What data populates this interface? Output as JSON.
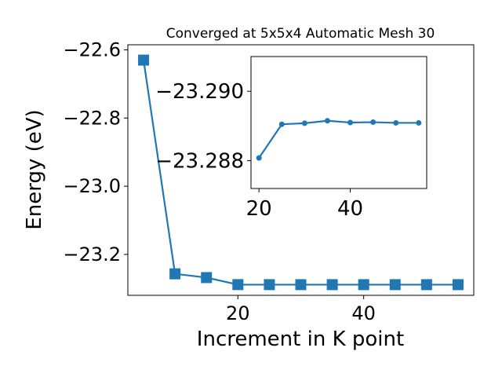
{
  "chart_data": [
    {
      "type": "line",
      "title": "Converged at 5x5x4 Automatic Mesh 30",
      "xlabel": "Increment in K point",
      "ylabel": "Energy (eV)",
      "xlim": [
        2.5,
        57.5
      ],
      "ylim": [
        -23.32,
        -22.585
      ],
      "x_ticks": [
        20,
        40
      ],
      "x_tick_labels": [
        "20",
        "40"
      ],
      "y_ticks": [
        -22.6,
        -22.8,
        -23.0,
        -23.2
      ],
      "y_tick_labels": [
        "−22.6",
        "−22.8",
        "−23.0",
        "−23.2"
      ],
      "grid": false,
      "marker": "square",
      "color": "#1f77b4",
      "series": [
        {
          "x": [
            5,
            10,
            15,
            20,
            25,
            30,
            35,
            40,
            45,
            50,
            55
          ],
          "values": [
            -22.63,
            -23.257,
            -23.268,
            -23.2886,
            -23.2887,
            -23.2887,
            -23.2887,
            -23.2887,
            -23.2887,
            -23.2887,
            -23.2887
          ]
        }
      ]
    },
    {
      "type": "line",
      "title": "",
      "xlabel": "",
      "ylabel": "",
      "xlim": [
        18.25,
        56.75
      ],
      "ylim": [
        -23.2872,
        -23.291
      ],
      "x_ticks": [
        20,
        40
      ],
      "x_tick_labels": [
        "20",
        "40"
      ],
      "y_ticks": [
        -23.29,
        -23.288
      ],
      "y_tick_labels": [
        "−23.290",
        "−23.288"
      ],
      "grid": false,
      "marker": "circle",
      "color": "#1f77b4",
      "series": [
        {
          "x": [
            20,
            25,
            30,
            35,
            40,
            45,
            50,
            55
          ],
          "values": [
            -23.28808,
            -23.28905,
            -23.28908,
            -23.28915,
            -23.2891,
            -23.28911,
            -23.28909,
            -23.28909
          ]
        }
      ]
    }
  ]
}
